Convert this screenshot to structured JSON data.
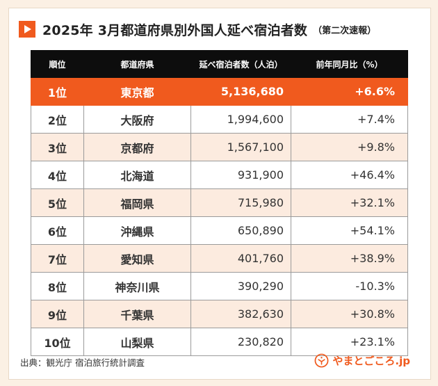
{
  "header": {
    "title": "2025年 3月都道府県別外国人延べ宿泊者数",
    "subtitle": "（第二次速報）",
    "icon": "play-icon"
  },
  "table": {
    "columns": [
      "順位",
      "都道府県",
      "延べ宿泊者数（人泊）",
      "前年同月比（%）"
    ],
    "rows": [
      {
        "rank": "1位",
        "prefecture": "東京都",
        "stays": "5,136,680",
        "yoy": "+6.6%"
      },
      {
        "rank": "2位",
        "prefecture": "大阪府",
        "stays": "1,994,600",
        "yoy": "+7.4%"
      },
      {
        "rank": "3位",
        "prefecture": "京都府",
        "stays": "1,567,100",
        "yoy": "+9.8%"
      },
      {
        "rank": "4位",
        "prefecture": "北海道",
        "stays": "931,900",
        "yoy": "+46.4%"
      },
      {
        "rank": "5位",
        "prefecture": "福岡県",
        "stays": "715,980",
        "yoy": "+32.1%"
      },
      {
        "rank": "6位",
        "prefecture": "沖縄県",
        "stays": "650,890",
        "yoy": "+54.1%"
      },
      {
        "rank": "7位",
        "prefecture": "愛知県",
        "stays": "401,760",
        "yoy": "+38.9%"
      },
      {
        "rank": "8位",
        "prefecture": "神奈川県",
        "stays": "390,290",
        "yoy": "-10.3%"
      },
      {
        "rank": "9位",
        "prefecture": "千葉県",
        "stays": "382,630",
        "yoy": "+30.8%"
      },
      {
        "rank": "10位",
        "prefecture": "山梨県",
        "stays": "230,820",
        "yoy": "+23.1%"
      }
    ]
  },
  "footer": {
    "source": "出典：観光庁 宿泊旅行統計調査",
    "brand": "やまとごころ.jp",
    "brand_icon": "yamatogokoro-logo-icon"
  },
  "colors": {
    "accent": "#f05a1e",
    "header_bg": "#0d0d0d",
    "stripe": "#fcebdf",
    "page_bg": "#fbf0e4"
  }
}
